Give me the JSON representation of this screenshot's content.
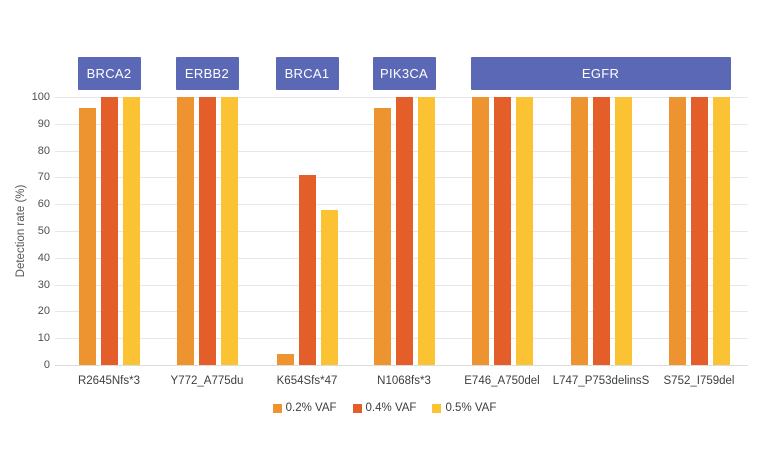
{
  "chart_data": {
    "type": "bar",
    "title": "",
    "xlabel": "",
    "ylabel": "Detection rate (%)",
    "ylim": [
      0,
      100
    ],
    "yticks": [
      0,
      10,
      20,
      30,
      40,
      50,
      60,
      70,
      80,
      90,
      100
    ],
    "grid": true,
    "legend_position": "bottom-center",
    "categories": [
      "R2645Nfs*3",
      "Y772_A775du",
      "K654Sfs*47",
      "N1068fs*3",
      "E746_A750del",
      "L747_P753delinsS",
      "S752_I759del"
    ],
    "gene_groups": [
      {
        "label": "BRCA2",
        "categories": [
          "R2645Nfs*3"
        ]
      },
      {
        "label": "ERBB2",
        "categories": [
          "Y772_A775du"
        ]
      },
      {
        "label": "BRCA1",
        "categories": [
          "K654Sfs*47"
        ]
      },
      {
        "label": "PIK3CA",
        "categories": [
          "N1068fs*3"
        ]
      },
      {
        "label": "EGFR",
        "categories": [
          "E746_A750del",
          "L747_P753delinsS",
          "S752_I759del"
        ]
      }
    ],
    "series": [
      {
        "name": "0.2% VAF",
        "color": "#ED9430",
        "values": [
          96,
          100,
          4,
          96,
          100,
          100,
          100
        ]
      },
      {
        "name": "0.4% VAF",
        "color": "#E45E29",
        "values": [
          100,
          100,
          71,
          100,
          100,
          100,
          100
        ]
      },
      {
        "name": "0.5% VAF",
        "color": "#FBC333",
        "values": [
          100,
          100,
          58,
          100,
          100,
          100,
          100
        ]
      }
    ],
    "colors": {
      "gene_header_bg": "#5A68B5",
      "gene_header_text": "#FFFFFF",
      "gridline": "#E7E7E7",
      "baseline": "#DCDCDC",
      "tick_text": "#4F4F4F",
      "label_text": "#3C4043",
      "axis_title_text": "#555555"
    }
  }
}
